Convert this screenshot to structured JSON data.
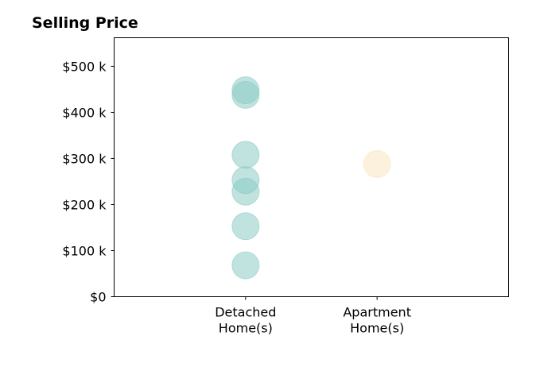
{
  "chart_data": {
    "type": "scatter",
    "title": "Selling Price",
    "xlabel": "",
    "ylabel": "",
    "categories": [
      [
        "Detached",
        "Home(s)"
      ],
      [
        "Apartment",
        "Home(s)"
      ]
    ],
    "y_ticks": [
      {
        "value": 0,
        "label": "$0"
      },
      {
        "value": 100000,
        "label": "$100 k"
      },
      {
        "value": 200000,
        "label": "$200 k"
      },
      {
        "value": 300000,
        "label": "$300 k"
      },
      {
        "value": 400000,
        "label": "$400 k"
      },
      {
        "value": 500000,
        "label": "$500 k"
      }
    ],
    "ylim": [
      0,
      562000
    ],
    "xlim": [
      -1,
      2
    ],
    "grid": false,
    "legend": "none",
    "series": [
      {
        "color": "#8cccc4",
        "x": [
          0,
          0,
          0,
          0,
          0,
          0,
          0
        ],
        "y": [
          68000,
          153000,
          228000,
          253000,
          308000,
          438000,
          448000
        ]
      },
      {
        "color": "#f8e6c0",
        "x": [
          1
        ],
        "y": [
          288000
        ]
      }
    ]
  }
}
